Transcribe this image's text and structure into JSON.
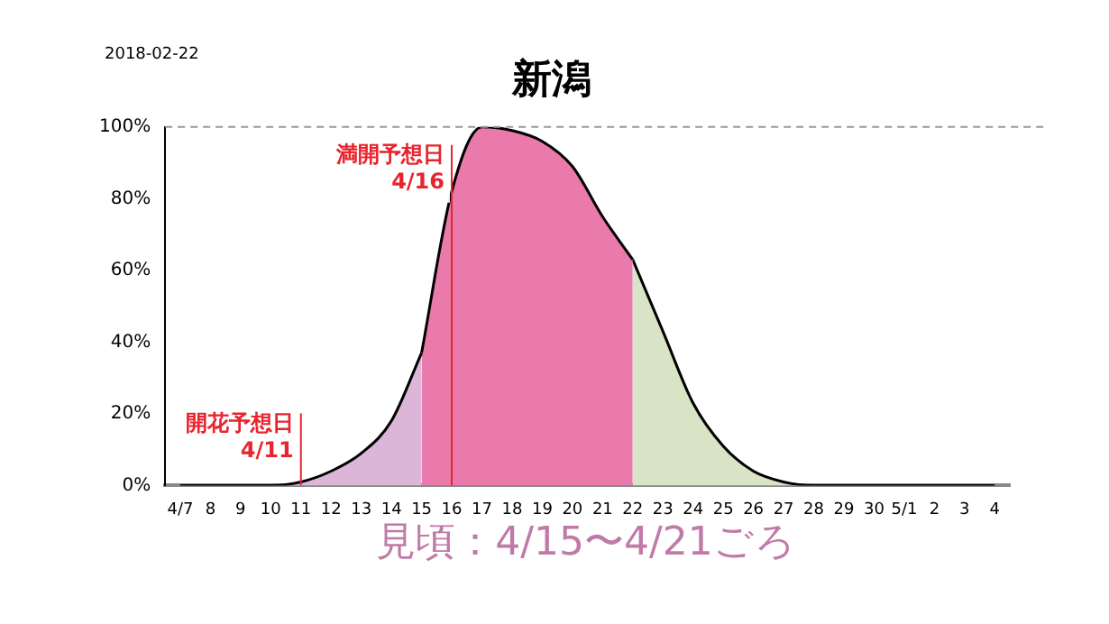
{
  "chart_data": {
    "type": "area",
    "title": "新潟",
    "categories": [
      "4/7",
      "8",
      "9",
      "10",
      "11",
      "12",
      "13",
      "14",
      "15",
      "16",
      "17",
      "18",
      "19",
      "20",
      "21",
      "22",
      "23",
      "24",
      "25",
      "26",
      "27",
      "28",
      "29",
      "30",
      "5/1",
      "2",
      "3",
      "4"
    ],
    "series": [
      {
        "color": "#dcb6d8",
        "values": [
          0,
          0,
          0,
          0,
          1,
          4,
          9,
          18,
          37,
          null,
          null,
          null,
          null,
          null,
          null,
          null,
          null,
          null,
          null,
          null,
          null,
          null,
          null,
          null,
          null,
          null,
          null,
          null
        ]
      },
      {
        "color": "#ea7aab",
        "values": [
          null,
          null,
          null,
          null,
          null,
          null,
          null,
          null,
          37,
          82,
          100,
          99,
          96,
          89,
          75,
          63,
          null,
          null,
          null,
          null,
          null,
          null,
          null,
          null,
          null,
          null,
          null,
          null
        ]
      },
      {
        "color": "#d9e3c6",
        "values": [
          null,
          null,
          null,
          null,
          null,
          null,
          null,
          null,
          null,
          null,
          null,
          null,
          null,
          null,
          null,
          63,
          43,
          23,
          11,
          4,
          1,
          0,
          0,
          0,
          0,
          0,
          0,
          0
        ]
      }
    ],
    "ylim": [
      0,
      100
    ],
    "yticks": [
      {
        "value": 0,
        "label": "0%"
      },
      {
        "value": 20,
        "label": "20%"
      },
      {
        "value": 40,
        "label": "40%"
      },
      {
        "value": 60,
        "label": "60%"
      },
      {
        "value": 80,
        "label": "80%"
      },
      {
        "value": 100,
        "label": "100%"
      }
    ],
    "grid": false,
    "legend": false,
    "marker": "none",
    "ref_lines": [
      {
        "axis": "y",
        "value": 100,
        "color": "#999999",
        "line_style": "dashed"
      },
      {
        "axis": "x",
        "value": "11",
        "label": "開花予想日\n4/11",
        "color": "#e8242e"
      },
      {
        "axis": "x",
        "value": "16",
        "label": "満開予想日\n4/16",
        "color": "#e8242e"
      }
    ],
    "annotations": [
      "2018-02-22",
      "見頃：4/15〜4/21ごろ"
    ]
  }
}
